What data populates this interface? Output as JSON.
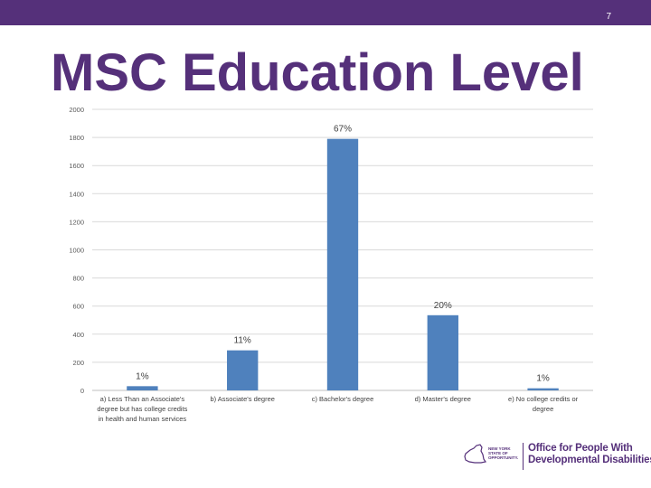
{
  "slide": {
    "number": "7",
    "title": "MSC Education Level"
  },
  "chart_data": {
    "type": "bar",
    "title": "",
    "xlabel": "",
    "ylabel": "",
    "ylim": [
      0,
      2000
    ],
    "yticks": [
      0,
      200,
      400,
      600,
      800,
      1000,
      1200,
      1400,
      1600,
      1800,
      2000
    ],
    "grid": true,
    "categories": [
      [
        "a) Less Than an Associate's",
        "degree but has college credits",
        "in health and human services"
      ],
      [
        "b) Associate's degree"
      ],
      [
        "c) Bachelor's degree"
      ],
      [
        "d) Master's degree"
      ],
      [
        "e) No college credits or",
        "degree"
      ]
    ],
    "values": [
      30,
      285,
      1790,
      535,
      15
    ],
    "data_labels": [
      "1%",
      "11%",
      "67%",
      "20%",
      "1%"
    ],
    "bar_color": "#4f81bd"
  },
  "logo": {
    "seal_text": "NEW YORK STATE OF OPPORTUNITY.",
    "org_line1": "Office for People With",
    "org_line2": "Developmental Disabilities"
  },
  "colors": {
    "brand_purple": "#55307a"
  }
}
